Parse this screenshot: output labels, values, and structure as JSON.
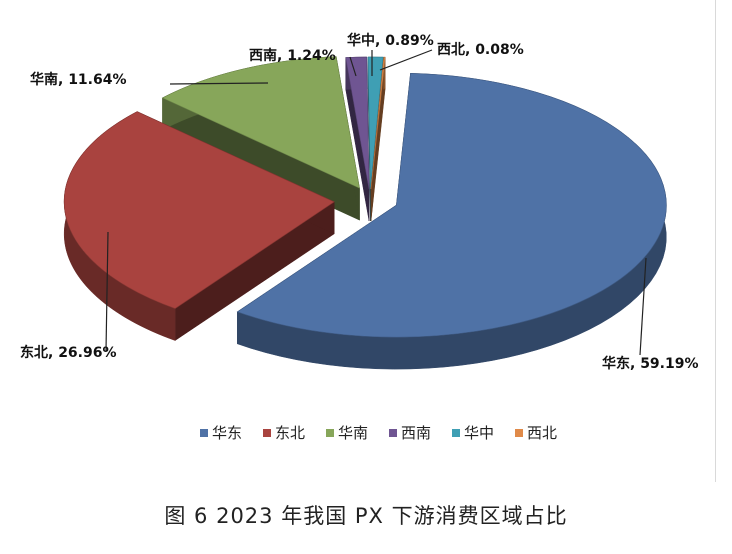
{
  "chart_data": {
    "type": "pie",
    "style": "3d-exploded",
    "categories": [
      "华东",
      "东北",
      "华南",
      "西南",
      "华中",
      "西北"
    ],
    "values": [
      59.19,
      26.96,
      11.64,
      1.24,
      0.89,
      0.08
    ],
    "unit": "%",
    "data_labels": [
      "华东, 59.19%",
      "东北, 26.96%",
      "华南, 11.64%",
      "西南, 1.24%",
      "华中, 0.89%",
      "西北, 0.08%"
    ],
    "colors": [
      "#4f72a6",
      "#a9433f",
      "#87a65a",
      "#6f5592",
      "#3f9fb4",
      "#e08a49"
    ],
    "legend_position": "bottom",
    "legend": [
      "华东",
      "东北",
      "华南",
      "西南",
      "华中",
      "西北"
    ]
  },
  "caption": "图 6  2023 年我国 PX 下游消费区域占比"
}
